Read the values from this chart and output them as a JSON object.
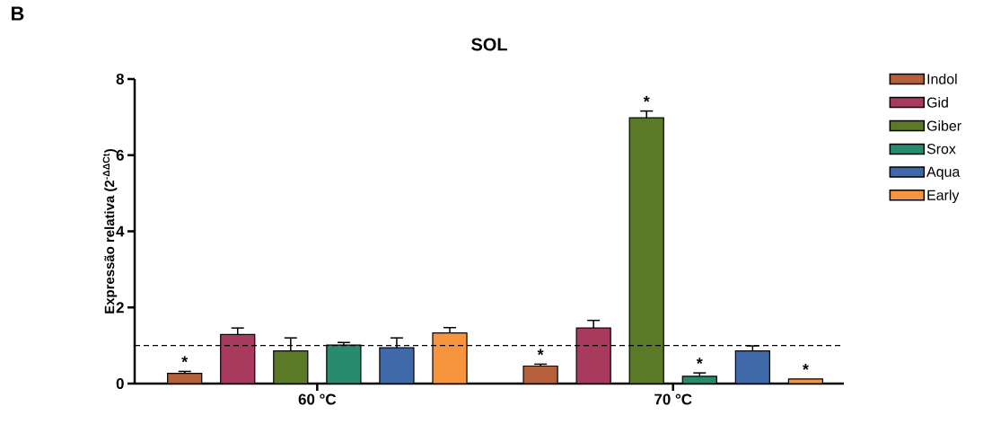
{
  "chart_data": {
    "type": "bar",
    "title": "SOL",
    "ylabel": "Expressão relativa (2$^{-ΔΔCt}$)",
    "categories": [
      "60 °C",
      "70 °C"
    ],
    "series": [
      {
        "name": "Indol",
        "color": "#b5603a",
        "values": [
          0.27,
          0.46
        ],
        "errors": [
          0.05,
          0.05
        ],
        "value_labels": [
          "*",
          "*"
        ]
      },
      {
        "name": "Gid",
        "color": "#a83a5e",
        "values": [
          1.29,
          1.46
        ],
        "errors": [
          0.17,
          0.2
        ]
      },
      {
        "name": "Giber",
        "color": "#5b7a28",
        "values": [
          0.86,
          6.98
        ],
        "errors": [
          0.34,
          0.18
        ],
        "value_labels": [
          null,
          "*"
        ]
      },
      {
        "name": "Srox",
        "color": "#2a8a6e",
        "values": [
          1.01,
          0.19
        ],
        "errors": [
          0.07,
          0.09
        ],
        "value_labels": [
          null,
          "*"
        ]
      },
      {
        "name": "Aqua",
        "color": "#3f69a8",
        "values": [
          0.94,
          0.86
        ],
        "errors": [
          0.26,
          0.13
        ]
      },
      {
        "name": "Early",
        "color": "#f7953e",
        "values": [
          1.33,
          0.12
        ],
        "errors": [
          0.14,
          null
        ],
        "value_labels": [
          null,
          "*"
        ]
      }
    ],
    "ylim": [
      0,
      8
    ],
    "yticks": [
      0,
      2,
      4,
      6,
      8
    ],
    "ref_lines": [
      {
        "axis": "y",
        "value": 1,
        "line_style": "dashed",
        "color": "#000000"
      }
    ],
    "legend": "right",
    "annotations": [
      "B"
    ]
  }
}
